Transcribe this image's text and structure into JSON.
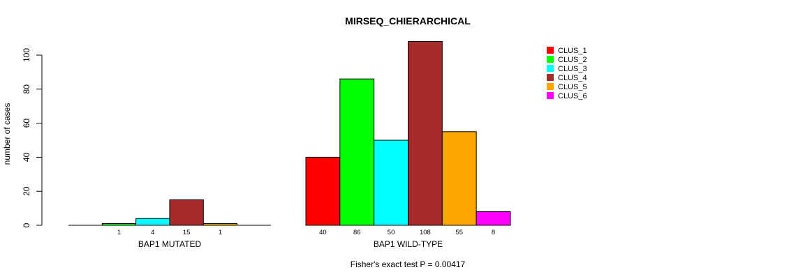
{
  "chart_data": {
    "type": "bar",
    "title": "MIRSEQ_CHIERARCHICAL",
    "ylabel": "number of cases",
    "ylim": [
      0,
      100
    ],
    "yticks": [
      0,
      20,
      40,
      60,
      80,
      100
    ],
    "footnote": "Fisher's exact test P = 0.00417",
    "groups": [
      {
        "label": "BAP1 MUTATED",
        "values": [
          0,
          1,
          4,
          15,
          1,
          0
        ],
        "counts_shown": [
          "",
          "1",
          "4",
          "15",
          "1",
          ""
        ]
      },
      {
        "label": "BAP1 WILD-TYPE",
        "values": [
          40,
          86,
          50,
          108,
          55,
          8
        ],
        "counts_shown": [
          "40",
          "86",
          "50",
          "108",
          "55",
          "8"
        ]
      }
    ],
    "series": [
      {
        "name": "CLUS_1",
        "color": "#ff0000"
      },
      {
        "name": "CLUS_2",
        "color": "#00ff00"
      },
      {
        "name": "CLUS_3",
        "color": "#00ffff"
      },
      {
        "name": "CLUS_4",
        "color": "#a52a2a"
      },
      {
        "name": "CLUS_5",
        "color": "#ffa500"
      },
      {
        "name": "CLUS_6",
        "color": "#ff00ff"
      }
    ],
    "legend_position": "top-right"
  }
}
